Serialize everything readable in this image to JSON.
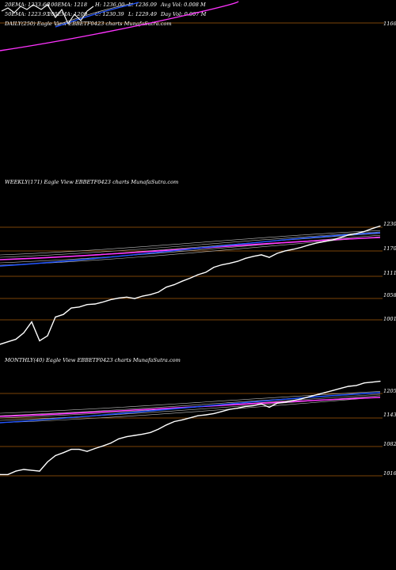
{
  "stats": {
    "row1": [
      "20EMA: 1233.66",
      "100EMA: 1218",
      "H: 1236.00",
      "L: 1236.09",
      "Avg Vol: 0.008 M"
    ],
    "row2": [
      "50EMA: 1223.93",
      "200EMA: 1209",
      "C: 1230.39",
      "L: 1229.49",
      "Day Vol: 0.007 M"
    ]
  },
  "colors": {
    "background": "#000000",
    "price": "#ffffff",
    "ema_blue": "#2255ff",
    "ema_magenta": "#ff33ff",
    "ema_gray": "#bbbbbb",
    "grid": "#a65a0c"
  },
  "chart_data": [
    {
      "type": "line",
      "label": "DAILY(250) Eagle  View  EBBETF0423 charts MunafaSutra.com",
      "yticks": [
        "1166"
      ],
      "series": []
    },
    {
      "type": "line",
      "label": "WEEKLY(171) Eagle  View  EBBETF0423 charts MunafaSutra.com",
      "yticks": [
        "1230",
        "1170",
        "1111",
        "1058",
        "1001"
      ],
      "ylim": [
        990,
        1245
      ],
      "x": [
        0,
        10,
        20,
        30,
        40,
        50,
        60,
        70,
        80,
        90,
        100,
        110,
        120,
        130,
        140,
        150,
        160,
        170,
        180,
        190,
        200,
        210,
        220,
        230,
        240,
        250,
        260,
        270,
        280,
        290,
        300,
        310,
        320,
        330,
        340,
        350,
        360,
        370,
        380,
        390,
        400,
        410,
        420,
        430,
        440,
        450,
        460,
        470,
        480
      ],
      "series": [
        {
          "name": "",
          "values": [
            995,
            1000,
            1005,
            1018,
            1040,
            1002,
            1012,
            1050,
            1055,
            1068,
            1070,
            1075,
            1076,
            1080,
            1085,
            1088,
            1090,
            1087,
            1092,
            1095,
            1100,
            1110,
            1115,
            1122,
            1128,
            1135,
            1140,
            1150,
            1155,
            1158,
            1162,
            1168,
            1172,
            1175,
            1170,
            1178,
            1183,
            1186,
            1190,
            1195,
            1199,
            1202,
            1205,
            1210,
            1215,
            1218,
            1222,
            1228,
            1233
          ]
        }
      ]
    },
    {
      "type": "line",
      "label": "MONTHLY(40) Eagle  View  EBBETF0423 charts MunafaSutra.com",
      "yticks": [
        "1205",
        "1143",
        "1082",
        "1016"
      ],
      "ylim": [
        980,
        1225
      ],
      "x": [
        0,
        10,
        20,
        30,
        40,
        50,
        60,
        70,
        80,
        90,
        100,
        110,
        120,
        130,
        140,
        150,
        160,
        170,
        180,
        190,
        200,
        210,
        220,
        230,
        240,
        250,
        260,
        270,
        280,
        290,
        300,
        310,
        320,
        330,
        340,
        350,
        360,
        370,
        380,
        390,
        400,
        410,
        420,
        430,
        440,
        450,
        460,
        470,
        480
      ],
      "series": [
        {
          "name": "",
          "values": [
            1000,
            1000,
            1008,
            1012,
            1010,
            1008,
            1030,
            1045,
            1052,
            1060,
            1060,
            1055,
            1062,
            1068,
            1075,
            1085,
            1090,
            1093,
            1096,
            1100,
            1108,
            1118,
            1126,
            1130,
            1135,
            1140,
            1142,
            1145,
            1150,
            1155,
            1158,
            1162,
            1164,
            1168,
            1160,
            1170,
            1172,
            1176,
            1180,
            1185,
            1190,
            1195,
            1200,
            1205,
            1210,
            1212,
            1218,
            1220,
            1222
          ]
        }
      ]
    }
  ]
}
